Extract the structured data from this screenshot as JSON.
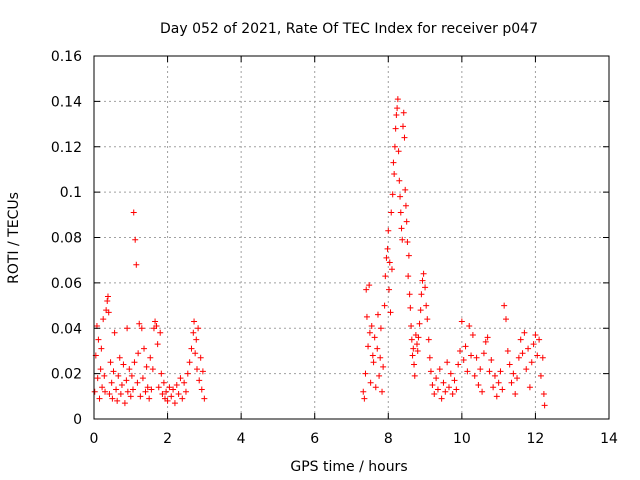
{
  "chart_data": {
    "type": "scatter",
    "title": "Day 052 of 2021, Rate Of TEC Index for receiver p047",
    "xlabel": "GPS time / hours",
    "ylabel": "ROTI / TECUs",
    "xlim": [
      0,
      14
    ],
    "ylim": [
      0,
      0.16
    ],
    "xticks": [
      0,
      2,
      4,
      6,
      8,
      10,
      12,
      14
    ],
    "yticks": [
      0,
      0.02,
      0.04,
      0.06,
      0.08,
      0.1,
      0.12,
      0.14,
      0.16
    ],
    "xtick_labels": [
      "0",
      "2",
      "4",
      "6",
      "8",
      "10",
      "12",
      "14"
    ],
    "ytick_labels": [
      "0",
      "0.02",
      "0.04",
      "0.06",
      "0.08",
      "0.1",
      "0.12",
      "0.14",
      "0.16"
    ],
    "grid": true,
    "marker": "+",
    "color": "#ff0000",
    "series": [
      {
        "name": "ROTI",
        "points": [
          [
            0.02,
            0.012
          ],
          [
            0.05,
            0.028
          ],
          [
            0.08,
            0.041
          ],
          [
            0.1,
            0.018
          ],
          [
            0.12,
            0.035
          ],
          [
            0.15,
            0.009
          ],
          [
            0.18,
            0.022
          ],
          [
            0.2,
            0.031
          ],
          [
            0.22,
            0.014
          ],
          [
            0.25,
            0.044
          ],
          [
            0.28,
            0.019
          ],
          [
            0.3,
            0.012
          ],
          [
            0.33,
            0.048
          ],
          [
            0.36,
            0.052
          ],
          [
            0.38,
            0.054
          ],
          [
            0.4,
            0.047
          ],
          [
            0.42,
            0.011
          ],
          [
            0.45,
            0.025
          ],
          [
            0.48,
            0.016
          ],
          [
            0.5,
            0.009
          ],
          [
            0.53,
            0.021
          ],
          [
            0.56,
            0.038
          ],
          [
            0.6,
            0.013
          ],
          [
            0.63,
            0.008
          ],
          [
            0.66,
            0.019
          ],
          [
            0.7,
            0.027
          ],
          [
            0.73,
            0.011
          ],
          [
            0.76,
            0.015
          ],
          [
            0.8,
            0.024
          ],
          [
            0.84,
            0.007
          ],
          [
            0.88,
            0.017
          ],
          [
            0.9,
            0.04
          ],
          [
            0.92,
            0.012
          ],
          [
            0.96,
            0.022
          ],
          [
            1.0,
            0.01
          ],
          [
            1.03,
            0.019
          ],
          [
            1.06,
            0.013
          ],
          [
            1.08,
            0.091
          ],
          [
            1.1,
            0.025
          ],
          [
            1.12,
            0.079
          ],
          [
            1.15,
            0.068
          ],
          [
            1.18,
            0.016
          ],
          [
            1.2,
            0.029
          ],
          [
            1.23,
            0.042
          ],
          [
            1.26,
            0.01
          ],
          [
            1.3,
            0.04
          ],
          [
            1.33,
            0.018
          ],
          [
            1.36,
            0.031
          ],
          [
            1.4,
            0.012
          ],
          [
            1.43,
            0.023
          ],
          [
            1.46,
            0.014
          ],
          [
            1.5,
            0.009
          ],
          [
            1.53,
            0.027
          ],
          [
            1.56,
            0.013
          ],
          [
            1.6,
            0.022
          ],
          [
            1.63,
            0.04
          ],
          [
            1.66,
            0.043
          ],
          [
            1.7,
            0.041
          ],
          [
            1.73,
            0.033
          ],
          [
            1.76,
            0.014
          ],
          [
            1.8,
            0.038
          ],
          [
            1.83,
            0.02
          ],
          [
            1.86,
            0.011
          ],
          [
            1.9,
            0.016
          ],
          [
            1.93,
            0.009
          ],
          [
            1.96,
            0.012
          ],
          [
            2.0,
            0.008
          ],
          [
            2.05,
            0.014
          ],
          [
            2.1,
            0.01
          ],
          [
            2.15,
            0.013
          ],
          [
            2.2,
            0.007
          ],
          [
            2.25,
            0.015
          ],
          [
            2.3,
            0.011
          ],
          [
            2.35,
            0.018
          ],
          [
            2.4,
            0.009
          ],
          [
            2.45,
            0.016
          ],
          [
            2.5,
            0.012
          ],
          [
            2.55,
            0.02
          ],
          [
            2.6,
            0.025
          ],
          [
            2.65,
            0.031
          ],
          [
            2.7,
            0.038
          ],
          [
            2.72,
            0.043
          ],
          [
            2.75,
            0.029
          ],
          [
            2.78,
            0.035
          ],
          [
            2.8,
            0.022
          ],
          [
            2.83,
            0.04
          ],
          [
            2.86,
            0.017
          ],
          [
            2.9,
            0.027
          ],
          [
            2.93,
            0.013
          ],
          [
            2.96,
            0.021
          ],
          [
            3.0,
            0.009
          ],
          [
            7.32,
            0.012
          ],
          [
            7.35,
            0.009
          ],
          [
            7.38,
            0.02
          ],
          [
            7.4,
            0.057
          ],
          [
            7.42,
            0.045
          ],
          [
            7.45,
            0.032
          ],
          [
            7.48,
            0.059
          ],
          [
            7.5,
            0.038
          ],
          [
            7.52,
            0.016
          ],
          [
            7.55,
            0.041
          ],
          [
            7.58,
            0.028
          ],
          [
            7.6,
            0.025
          ],
          [
            7.63,
            0.036
          ],
          [
            7.66,
            0.014
          ],
          [
            7.7,
            0.031
          ],
          [
            7.72,
            0.046
          ],
          [
            7.75,
            0.019
          ],
          [
            7.78,
            0.027
          ],
          [
            7.8,
            0.04
          ],
          [
            7.83,
            0.012
          ],
          [
            7.86,
            0.023
          ],
          [
            7.9,
            0.05
          ],
          [
            7.92,
            0.063
          ],
          [
            7.95,
            0.071
          ],
          [
            7.98,
            0.075
          ],
          [
            8.0,
            0.083
          ],
          [
            8.02,
            0.057
          ],
          [
            8.04,
            0.069
          ],
          [
            8.06,
            0.047
          ],
          [
            8.08,
            0.091
          ],
          [
            8.1,
            0.066
          ],
          [
            8.12,
            0.099
          ],
          [
            8.14,
            0.113
          ],
          [
            8.16,
            0.108
          ],
          [
            8.18,
            0.12
          ],
          [
            8.2,
            0.128
          ],
          [
            8.22,
            0.134
          ],
          [
            8.24,
            0.137
          ],
          [
            8.26,
            0.141
          ],
          [
            8.28,
            0.118
          ],
          [
            8.3,
            0.105
          ],
          [
            8.32,
            0.098
          ],
          [
            8.34,
            0.091
          ],
          [
            8.36,
            0.084
          ],
          [
            8.38,
            0.079
          ],
          [
            8.4,
            0.129
          ],
          [
            8.42,
            0.135
          ],
          [
            8.44,
            0.124
          ],
          [
            8.46,
            0.101
          ],
          [
            8.48,
            0.094
          ],
          [
            8.5,
            0.087
          ],
          [
            8.52,
            0.078
          ],
          [
            8.54,
            0.063
          ],
          [
            8.56,
            0.072
          ],
          [
            8.58,
            0.055
          ],
          [
            8.6,
            0.049
          ],
          [
            8.62,
            0.041
          ],
          [
            8.64,
            0.035
          ],
          [
            8.66,
            0.028
          ],
          [
            8.68,
            0.031
          ],
          [
            8.7,
            0.024
          ],
          [
            8.72,
            0.019
          ],
          [
            8.75,
            0.037
          ],
          [
            8.78,
            0.033
          ],
          [
            8.8,
            0.03
          ],
          [
            8.82,
            0.036
          ],
          [
            8.85,
            0.042
          ],
          [
            8.88,
            0.048
          ],
          [
            8.9,
            0.055
          ],
          [
            8.93,
            0.061
          ],
          [
            8.96,
            0.064
          ],
          [
            9.0,
            0.058
          ],
          [
            9.03,
            0.05
          ],
          [
            9.06,
            0.044
          ],
          [
            9.1,
            0.035
          ],
          [
            9.13,
            0.027
          ],
          [
            9.16,
            0.021
          ],
          [
            9.2,
            0.015
          ],
          [
            9.25,
            0.011
          ],
          [
            9.3,
            0.018
          ],
          [
            9.35,
            0.013
          ],
          [
            9.4,
            0.022
          ],
          [
            9.45,
            0.009
          ],
          [
            9.5,
            0.016
          ],
          [
            9.55,
            0.012
          ],
          [
            9.6,
            0.025
          ],
          [
            9.65,
            0.014
          ],
          [
            9.7,
            0.02
          ],
          [
            9.75,
            0.011
          ],
          [
            9.8,
            0.017
          ],
          [
            9.85,
            0.013
          ],
          [
            9.9,
            0.024
          ],
          [
            9.95,
            0.03
          ],
          [
            10.0,
            0.043
          ],
          [
            10.05,
            0.026
          ],
          [
            10.1,
            0.032
          ],
          [
            10.15,
            0.021
          ],
          [
            10.2,
            0.041
          ],
          [
            10.25,
            0.028
          ],
          [
            10.3,
            0.037
          ],
          [
            10.35,
            0.019
          ],
          [
            10.4,
            0.027
          ],
          [
            10.45,
            0.015
          ],
          [
            10.5,
            0.022
          ],
          [
            10.55,
            0.012
          ],
          [
            10.6,
            0.029
          ],
          [
            10.65,
            0.034
          ],
          [
            10.7,
            0.036
          ],
          [
            10.75,
            0.021
          ],
          [
            10.8,
            0.026
          ],
          [
            10.85,
            0.014
          ],
          [
            10.9,
            0.019
          ],
          [
            10.95,
            0.01
          ],
          [
            11.0,
            0.016
          ],
          [
            11.05,
            0.021
          ],
          [
            11.1,
            0.013
          ],
          [
            11.15,
            0.05
          ],
          [
            11.2,
            0.044
          ],
          [
            11.25,
            0.03
          ],
          [
            11.3,
            0.024
          ],
          [
            11.35,
            0.016
          ],
          [
            11.4,
            0.02
          ],
          [
            11.45,
            0.011
          ],
          [
            11.5,
            0.018
          ],
          [
            11.55,
            0.027
          ],
          [
            11.6,
            0.035
          ],
          [
            11.65,
            0.029
          ],
          [
            11.7,
            0.038
          ],
          [
            11.75,
            0.022
          ],
          [
            11.8,
            0.031
          ],
          [
            11.85,
            0.014
          ],
          [
            11.9,
            0.025
          ],
          [
            11.95,
            0.033
          ],
          [
            12.0,
            0.037
          ],
          [
            12.05,
            0.028
          ],
          [
            12.1,
            0.035
          ],
          [
            12.15,
            0.019
          ],
          [
            12.2,
            0.027
          ],
          [
            12.23,
            0.011
          ],
          [
            12.25,
            0.006
          ]
        ]
      }
    ]
  }
}
